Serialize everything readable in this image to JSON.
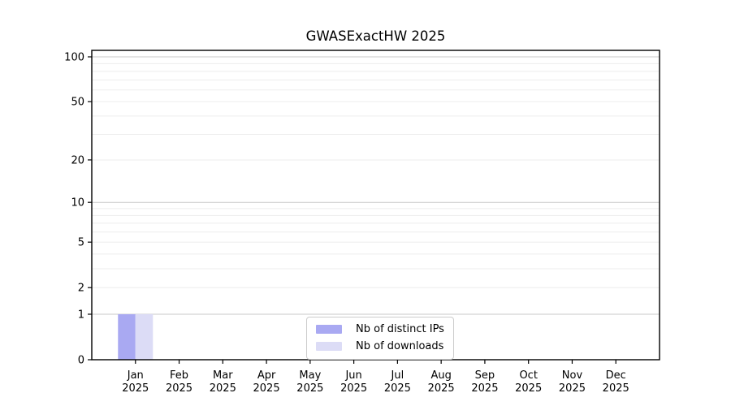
{
  "chart_data": {
    "type": "bar",
    "title": "GWASExactHW 2025",
    "categories": [
      "Jan 2025",
      "Feb 2025",
      "Mar 2025",
      "Apr 2025",
      "May 2025",
      "Jun 2025",
      "Jul 2025",
      "Aug 2025",
      "Sep 2025",
      "Oct 2025",
      "Nov 2025",
      "Dec 2025"
    ],
    "series": [
      {
        "name": "Nb of distinct IPs",
        "color": "#a9a9f2",
        "values": [
          1,
          0,
          0,
          0,
          0,
          0,
          0,
          0,
          0,
          0,
          0,
          0
        ]
      },
      {
        "name": "Nb of downloads",
        "color": "#dcdcf6",
        "values": [
          1,
          0,
          0,
          0,
          0,
          0,
          0,
          0,
          0,
          0,
          0,
          0
        ]
      }
    ],
    "xlabel": "",
    "ylabel": "",
    "y_scale": "log10(value+1)",
    "y_tick_values": [
      0,
      1,
      2,
      5,
      10,
      20,
      50,
      100
    ],
    "y_major_gridlines": [
      1,
      10,
      100
    ],
    "y_minor_gridlines": [
      2,
      3,
      4,
      5,
      6,
      7,
      8,
      9,
      20,
      30,
      40,
      50,
      60,
      70,
      80,
      90
    ],
    "ylim": [
      0,
      110
    ],
    "grid": "on",
    "legend_position": "lower center",
    "colors": {
      "axis_spine": "#000000",
      "tick_text": "#000000",
      "major_gridline": "#c9c9c9",
      "minor_gridline": "#ededed",
      "legend_border": "#cccccc",
      "background": "#ffffff"
    }
  }
}
